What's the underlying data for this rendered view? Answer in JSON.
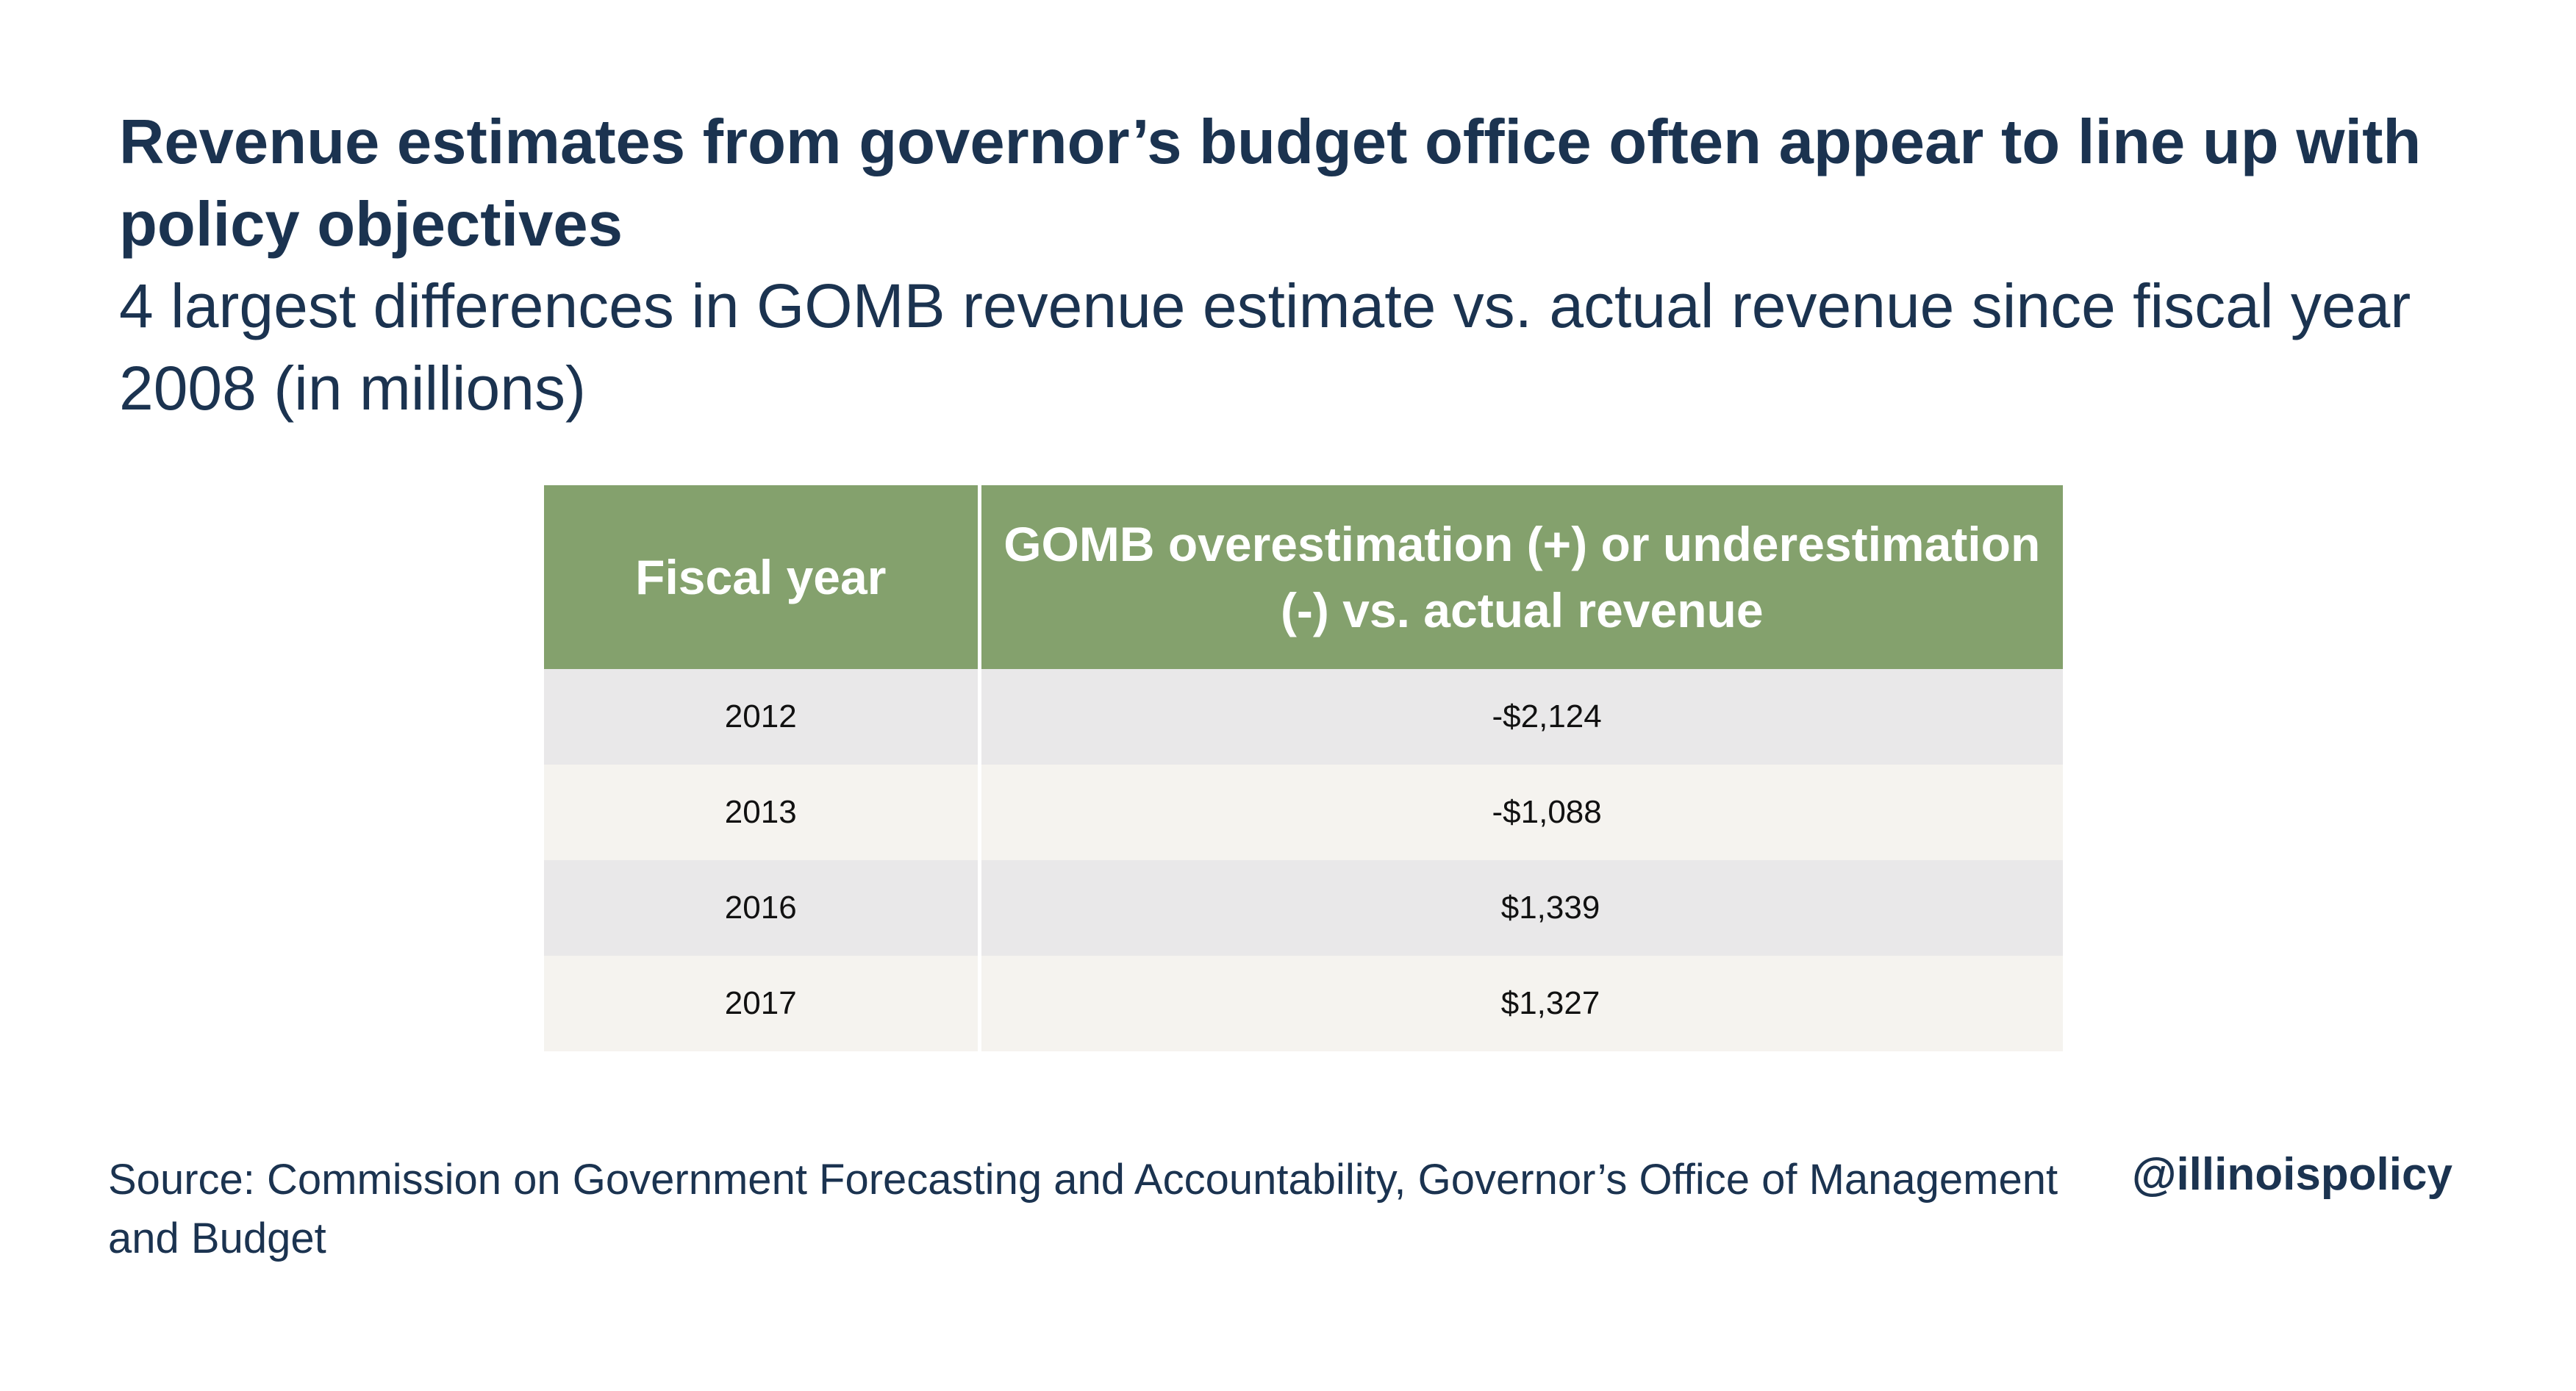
{
  "title": "Revenue estimates from governor’s budget office often appear to line up with policy objectives",
  "subtitle": "4 largest differences in GOMB revenue estimate vs. actual revenue since fiscal year 2008 (in millions)",
  "table": {
    "headers": [
      "Fiscal year",
      "GOMB overestimation (+) or underestimation (-) vs. actual revenue"
    ],
    "rows": [
      {
        "year": "2012",
        "value": "-$2,124"
      },
      {
        "year": "2013",
        "value": "-$1,088"
      },
      {
        "year": "2016",
        "value": " $1,339"
      },
      {
        "year": "2017",
        "value": " $1,327"
      }
    ]
  },
  "source": "Source: Commission on Government Forecasting and Accountability, Governor’s Office of Management and Budget",
  "handle": "@illinoispolicy",
  "colors": {
    "header_bg": "#84a16d",
    "row_odd": "#e9e8e9",
    "row_even": "#f5f3ef",
    "text": "#1b3350"
  }
}
